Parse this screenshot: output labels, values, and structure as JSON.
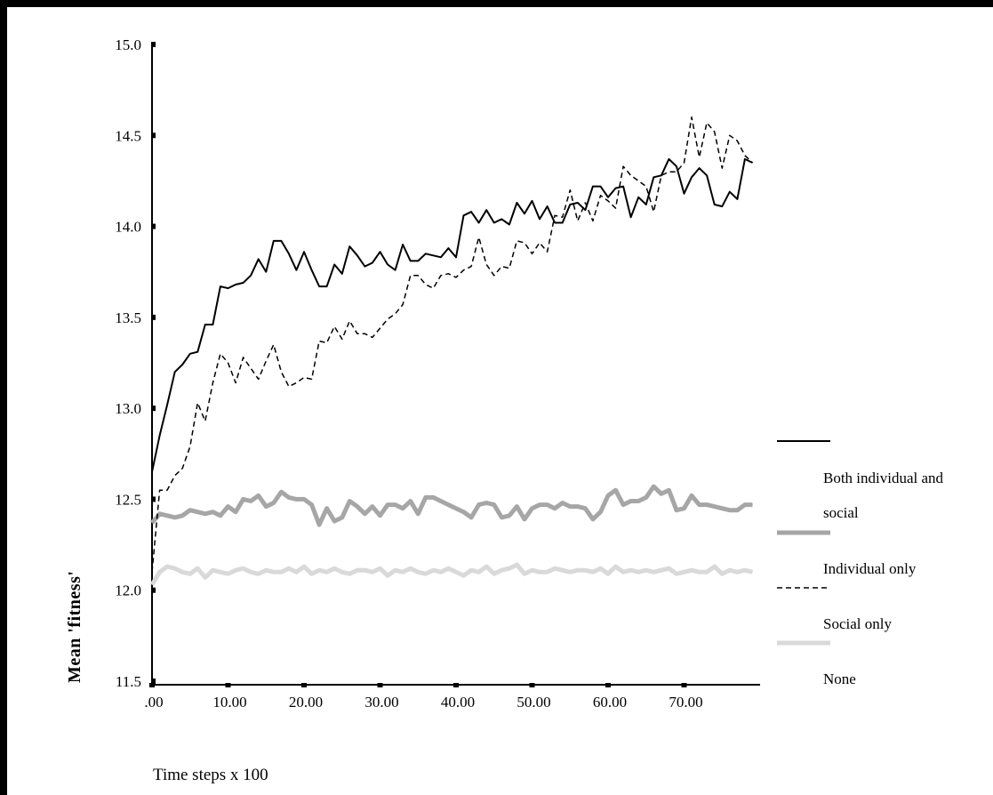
{
  "chart_data": {
    "type": "line",
    "title": "",
    "xlabel": "Time steps x 100",
    "ylabel": "Mean 'fitness'",
    "xlim": [
      0,
      80
    ],
    "ylim": [
      11.5,
      15.0
    ],
    "x_ticks": [
      ".00",
      "10.00",
      "20.00",
      "30.00",
      "40.00",
      "50.00",
      "60.00",
      "70.00"
    ],
    "y_ticks": [
      "11.5",
      "12.0",
      "12.5",
      "13.0",
      "13.5",
      "14.0",
      "14.5",
      "15.0"
    ],
    "grid": false,
    "legend_position": "right",
    "series": [
      {
        "name": "Both individual and social",
        "style": "solid-black",
        "color": "#000000",
        "values": [
          12.65,
          12.85,
          13.02,
          13.2,
          13.24,
          13.3,
          13.31,
          13.46,
          13.46,
          13.67,
          13.66,
          13.68,
          13.69,
          13.73,
          13.82,
          13.75,
          13.92,
          13.92,
          13.85,
          13.76,
          13.86,
          13.76,
          13.67,
          13.67,
          13.79,
          13.74,
          13.89,
          13.84,
          13.78,
          13.8,
          13.86,
          13.79,
          13.76,
          13.9,
          13.81,
          13.81,
          13.85,
          13.84,
          13.83,
          13.88,
          13.83,
          14.06,
          14.08,
          14.02,
          14.09,
          14.02,
          14.04,
          14.01,
          14.13,
          14.07,
          14.14,
          14.04,
          14.11,
          14.02,
          14.02,
          14.12,
          14.13,
          14.09,
          14.22,
          14.22,
          14.16,
          14.21,
          14.22,
          14.05,
          14.16,
          14.12,
          14.27,
          14.28,
          14.37,
          14.33,
          14.18,
          14.27,
          14.32,
          14.28,
          14.12,
          14.11,
          14.19,
          14.15,
          14.37,
          14.35
        ]
      },
      {
        "name": "Individual only",
        "style": "dashed-black",
        "color": "#000000",
        "values": [
          12.1,
          12.55,
          12.55,
          12.63,
          12.67,
          12.79,
          13.03,
          12.93,
          13.14,
          13.3,
          13.25,
          13.14,
          13.28,
          13.22,
          13.16,
          13.26,
          13.35,
          13.2,
          13.12,
          13.14,
          13.17,
          13.16,
          13.37,
          13.36,
          13.45,
          13.38,
          13.48,
          13.41,
          13.41,
          13.39,
          13.44,
          13.49,
          13.52,
          13.57,
          13.73,
          13.73,
          13.68,
          13.66,
          13.73,
          13.74,
          13.72,
          13.76,
          13.78,
          13.94,
          13.79,
          13.73,
          13.78,
          13.77,
          13.92,
          13.91,
          13.85,
          13.91,
          13.86,
          14.06,
          14.05,
          14.2,
          14.03,
          14.13,
          14.03,
          14.17,
          14.14,
          14.1,
          14.33,
          14.28,
          14.25,
          14.22,
          14.08,
          14.28,
          14.3,
          14.3,
          14.35,
          14.6,
          14.38,
          14.57,
          14.52,
          14.32,
          14.5,
          14.47,
          14.39,
          14.35
        ]
      },
      {
        "name": "Social only",
        "style": "thick-gray",
        "color": "#a6a6a6",
        "values": [
          12.37,
          12.42,
          12.41,
          12.4,
          12.41,
          12.44,
          12.43,
          12.42,
          12.43,
          12.41,
          12.46,
          12.43,
          12.5,
          12.49,
          12.52,
          12.46,
          12.48,
          12.54,
          12.51,
          12.5,
          12.5,
          12.47,
          12.36,
          12.45,
          12.38,
          12.4,
          12.49,
          12.46,
          12.42,
          12.46,
          12.41,
          12.47,
          12.47,
          12.45,
          12.49,
          12.42,
          12.51,
          12.51,
          12.49,
          12.47,
          12.45,
          12.43,
          12.4,
          12.47,
          12.48,
          12.47,
          12.4,
          12.41,
          12.46,
          12.39,
          12.45,
          12.47,
          12.47,
          12.45,
          12.48,
          12.46,
          12.46,
          12.45,
          12.39,
          12.43,
          12.52,
          12.55,
          12.47,
          12.49,
          12.49,
          12.51,
          12.57,
          12.53,
          12.55,
          12.44,
          12.45,
          12.52,
          12.47,
          12.47,
          12.46,
          12.45,
          12.44,
          12.44,
          12.47,
          12.47
        ]
      },
      {
        "name": "None",
        "style": "thick-lightgray",
        "color": "#d9d9d9",
        "values": [
          12.03,
          12.1,
          12.13,
          12.12,
          12.1,
          12.09,
          12.12,
          12.07,
          12.11,
          12.1,
          12.09,
          12.11,
          12.12,
          12.1,
          12.09,
          12.11,
          12.1,
          12.1,
          12.12,
          12.1,
          12.13,
          12.09,
          12.11,
          12.1,
          12.12,
          12.1,
          12.09,
          12.11,
          12.11,
          12.1,
          12.12,
          12.08,
          12.11,
          12.1,
          12.12,
          12.1,
          12.09,
          12.11,
          12.1,
          12.12,
          12.1,
          12.08,
          12.11,
          12.1,
          12.13,
          12.09,
          12.11,
          12.12,
          12.14,
          12.09,
          12.11,
          12.1,
          12.1,
          12.12,
          12.11,
          12.1,
          12.11,
          12.11,
          12.1,
          12.12,
          12.09,
          12.13,
          12.1,
          12.11,
          12.1,
          12.11,
          12.1,
          12.11,
          12.12,
          12.09,
          12.1,
          12.11,
          12.1,
          12.1,
          12.13,
          12.09,
          12.11,
          12.1,
          12.11,
          12.1
        ]
      }
    ]
  }
}
